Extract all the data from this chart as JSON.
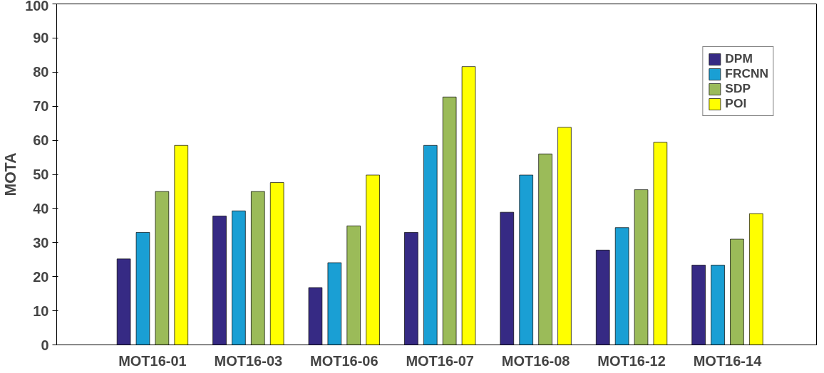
{
  "chart_data": {
    "type": "bar",
    "ylabel": "MOTA",
    "categories": [
      "MOT16-01",
      "MOT16-03",
      "MOT16-06",
      "MOT16-07",
      "MOT16-08",
      "MOT16-12",
      "MOT16-14"
    ],
    "series": [
      {
        "name": "DPM",
        "color": "#362a84",
        "values": [
          25.2,
          37.8,
          16.8,
          33,
          38.9,
          27.8,
          23.4
        ]
      },
      {
        "name": "FRCNN",
        "color": "#1a9fd4",
        "values": [
          33,
          39.3,
          24.1,
          58.5,
          49.8,
          34.4,
          23.4
        ]
      },
      {
        "name": "SDP",
        "color": "#9bbb59",
        "values": [
          45,
          45,
          34.9,
          72.7,
          56,
          45.5,
          31
        ]
      },
      {
        "name": "POI",
        "color": "#ffff00",
        "values": [
          58.5,
          47.6,
          49.8,
          81.6,
          63.8,
          59.4,
          38.5
        ]
      }
    ],
    "ylim": [
      0,
      100
    ],
    "yticks": [
      0,
      10,
      20,
      30,
      40,
      50,
      60,
      70,
      80,
      90,
      100
    ],
    "grid": false,
    "legend": "top right"
  }
}
